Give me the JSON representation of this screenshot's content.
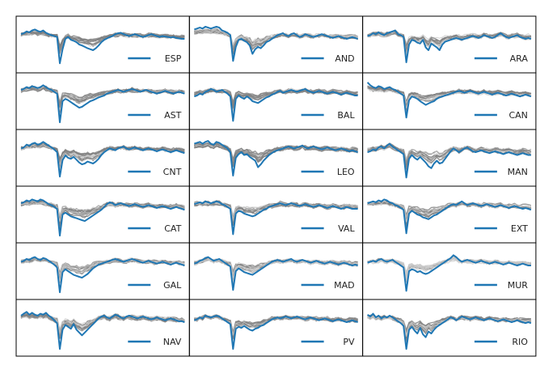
{
  "chart_data": {
    "type": "line",
    "description_grid": {
      "rows": 6,
      "cols": 3
    },
    "grid": false,
    "axis_ticks": false,
    "legend_placement": "lower-right",
    "colors": {
      "highlight": "#1f77b4",
      "background_series": "#808080",
      "frame": "#000000"
    },
    "x": [
      0,
      1,
      2,
      3,
      4,
      5,
      6,
      7,
      8,
      9,
      10,
      11,
      12,
      13,
      14,
      15,
      16,
      17,
      18,
      19,
      20,
      21,
      22,
      23,
      24,
      25,
      26,
      27,
      28,
      29,
      30,
      31,
      32,
      33,
      34,
      35,
      36,
      37,
      38,
      39,
      40,
      41,
      42,
      43,
      44,
      45,
      46,
      47,
      48,
      49,
      50,
      51,
      52,
      53,
      54,
      55,
      56,
      57,
      58,
      59
    ],
    "panels": [
      {
        "label": "ESP",
        "values": [
          0.72,
          0.74,
          0.78,
          0.76,
          0.8,
          0.82,
          0.79,
          0.77,
          0.8,
          0.75,
          0.72,
          0.7,
          0.68,
          0.66,
          0.1,
          0.4,
          0.62,
          0.66,
          0.6,
          0.58,
          0.55,
          0.5,
          0.48,
          0.45,
          0.42,
          0.4,
          0.38,
          0.42,
          0.48,
          0.55,
          0.6,
          0.63,
          0.66,
          0.68,
          0.72,
          0.74,
          0.75,
          0.72,
          0.7,
          0.68,
          0.7,
          0.72,
          0.7,
          0.68,
          0.66,
          0.68,
          0.7,
          0.72,
          0.7,
          0.68,
          0.66,
          0.68,
          0.67,
          0.66,
          0.65,
          0.66,
          0.64,
          0.63,
          0.62,
          0.62
        ]
      },
      {
        "label": "AND",
        "values": [
          0.82,
          0.84,
          0.86,
          0.84,
          0.88,
          0.86,
          0.84,
          0.86,
          0.88,
          0.86,
          0.8,
          0.78,
          0.75,
          0.7,
          0.15,
          0.45,
          0.6,
          0.62,
          0.58,
          0.55,
          0.48,
          0.3,
          0.4,
          0.45,
          0.42,
          0.48,
          0.55,
          0.58,
          0.62,
          0.66,
          0.7,
          0.72,
          0.74,
          0.7,
          0.68,
          0.72,
          0.74,
          0.7,
          0.66,
          0.68,
          0.72,
          0.7,
          0.68,
          0.66,
          0.68,
          0.7,
          0.72,
          0.7,
          0.68,
          0.66,
          0.64,
          0.66,
          0.68,
          0.66,
          0.64,
          0.62,
          0.64,
          0.66,
          0.64,
          0.62
        ]
      },
      {
        "label": "ARA",
        "values": [
          0.68,
          0.7,
          0.74,
          0.72,
          0.76,
          0.72,
          0.7,
          0.74,
          0.76,
          0.78,
          0.8,
          0.72,
          0.7,
          0.66,
          0.12,
          0.5,
          0.6,
          0.58,
          0.54,
          0.52,
          0.6,
          0.44,
          0.38,
          0.52,
          0.48,
          0.44,
          0.38,
          0.5,
          0.56,
          0.58,
          0.6,
          0.62,
          0.64,
          0.62,
          0.6,
          0.62,
          0.64,
          0.66,
          0.68,
          0.66,
          0.64,
          0.66,
          0.7,
          0.68,
          0.66,
          0.64,
          0.66,
          0.7,
          0.74,
          0.7,
          0.66,
          0.64,
          0.66,
          0.68,
          0.7,
          0.66,
          0.64,
          0.62,
          0.64,
          0.62
        ]
      },
      {
        "label": "AST",
        "values": [
          0.74,
          0.76,
          0.8,
          0.78,
          0.82,
          0.8,
          0.78,
          0.8,
          0.84,
          0.8,
          0.76,
          0.74,
          0.7,
          0.66,
          0.05,
          0.5,
          0.55,
          0.52,
          0.48,
          0.44,
          0.4,
          0.36,
          0.38,
          0.42,
          0.46,
          0.5,
          0.52,
          0.55,
          0.58,
          0.6,
          0.62,
          0.66,
          0.68,
          0.7,
          0.72,
          0.74,
          0.72,
          0.7,
          0.72,
          0.74,
          0.76,
          0.74,
          0.72,
          0.7,
          0.72,
          0.74,
          0.72,
          0.7,
          0.68,
          0.66,
          0.68,
          0.7,
          0.72,
          0.7,
          0.68,
          0.66,
          0.68,
          0.7,
          0.68,
          0.66
        ]
      },
      {
        "label": "BAL",
        "values": [
          0.6,
          0.62,
          0.66,
          0.64,
          0.7,
          0.72,
          0.76,
          0.74,
          0.7,
          0.72,
          0.74,
          0.7,
          0.66,
          0.6,
          0.08,
          0.55,
          0.62,
          0.58,
          0.55,
          0.6,
          0.56,
          0.5,
          0.48,
          0.46,
          0.5,
          0.54,
          0.58,
          0.6,
          0.64,
          0.66,
          0.7,
          0.72,
          0.68,
          0.7,
          0.72,
          0.74,
          0.72,
          0.7,
          0.72,
          0.74,
          0.76,
          0.72,
          0.7,
          0.68,
          0.7,
          0.72,
          0.7,
          0.68,
          0.66,
          0.68,
          0.7,
          0.68,
          0.66,
          0.64,
          0.66,
          0.68,
          0.66,
          0.64,
          0.62,
          0.62
        ]
      },
      {
        "label": "CAN",
        "values": [
          0.9,
          0.84,
          0.8,
          0.78,
          0.82,
          0.8,
          0.76,
          0.78,
          0.8,
          0.76,
          0.74,
          0.7,
          0.66,
          0.62,
          0.15,
          0.52,
          0.6,
          0.58,
          0.55,
          0.5,
          0.46,
          0.42,
          0.45,
          0.48,
          0.5,
          0.55,
          0.58,
          0.6,
          0.62,
          0.64,
          0.66,
          0.68,
          0.7,
          0.72,
          0.7,
          0.68,
          0.7,
          0.72,
          0.7,
          0.68,
          0.66,
          0.68,
          0.7,
          0.68,
          0.66,
          0.64,
          0.66,
          0.68,
          0.66,
          0.64,
          0.62,
          0.64,
          0.66,
          0.64,
          0.62,
          0.6,
          0.62,
          0.64,
          0.62,
          0.6
        ]
      },
      {
        "label": "CNT",
        "values": [
          0.7,
          0.72,
          0.78,
          0.76,
          0.8,
          0.82,
          0.78,
          0.8,
          0.84,
          0.8,
          0.76,
          0.72,
          0.68,
          0.62,
          0.1,
          0.45,
          0.55,
          0.5,
          0.48,
          0.52,
          0.46,
          0.4,
          0.36,
          0.38,
          0.42,
          0.4,
          0.38,
          0.42,
          0.48,
          0.56,
          0.62,
          0.66,
          0.7,
          0.68,
          0.66,
          0.7,
          0.72,
          0.74,
          0.7,
          0.68,
          0.7,
          0.72,
          0.7,
          0.68,
          0.66,
          0.68,
          0.7,
          0.68,
          0.66,
          0.64,
          0.66,
          0.68,
          0.66,
          0.64,
          0.62,
          0.64,
          0.66,
          0.64,
          0.62,
          0.6
        ]
      },
      {
        "label": "LEO",
        "values": [
          0.8,
          0.82,
          0.84,
          0.8,
          0.84,
          0.86,
          0.8,
          0.78,
          0.84,
          0.82,
          0.78,
          0.74,
          0.7,
          0.62,
          0.12,
          0.5,
          0.58,
          0.62,
          0.56,
          0.58,
          0.52,
          0.48,
          0.44,
          0.3,
          0.36,
          0.44,
          0.5,
          0.56,
          0.6,
          0.64,
          0.66,
          0.68,
          0.7,
          0.72,
          0.74,
          0.72,
          0.7,
          0.72,
          0.74,
          0.76,
          0.72,
          0.7,
          0.72,
          0.74,
          0.72,
          0.7,
          0.68,
          0.7,
          0.72,
          0.7,
          0.68,
          0.66,
          0.68,
          0.7,
          0.68,
          0.66,
          0.64,
          0.66,
          0.64,
          0.62
        ]
      },
      {
        "label": "MAN",
        "values": [
          0.62,
          0.64,
          0.68,
          0.66,
          0.72,
          0.74,
          0.7,
          0.76,
          0.8,
          0.74,
          0.7,
          0.66,
          0.62,
          0.58,
          0.08,
          0.48,
          0.56,
          0.5,
          0.46,
          0.52,
          0.46,
          0.4,
          0.32,
          0.28,
          0.38,
          0.44,
          0.38,
          0.4,
          0.48,
          0.56,
          0.64,
          0.7,
          0.66,
          0.62,
          0.66,
          0.7,
          0.72,
          0.68,
          0.64,
          0.62,
          0.64,
          0.66,
          0.64,
          0.62,
          0.6,
          0.62,
          0.64,
          0.62,
          0.6,
          0.58,
          0.6,
          0.62,
          0.6,
          0.58,
          0.56,
          0.58,
          0.6,
          0.58,
          0.56,
          0.56
        ]
      },
      {
        "label": "CAT",
        "values": [
          0.74,
          0.76,
          0.8,
          0.78,
          0.82,
          0.8,
          0.78,
          0.82,
          0.8,
          0.76,
          0.72,
          0.7,
          0.66,
          0.62,
          0.05,
          0.5,
          0.54,
          0.5,
          0.46,
          0.44,
          0.42,
          0.4,
          0.38,
          0.36,
          0.4,
          0.44,
          0.48,
          0.52,
          0.56,
          0.6,
          0.66,
          0.72,
          0.76,
          0.74,
          0.7,
          0.72,
          0.74,
          0.72,
          0.7,
          0.68,
          0.7,
          0.72,
          0.7,
          0.68,
          0.66,
          0.68,
          0.7,
          0.68,
          0.66,
          0.64,
          0.66,
          0.68,
          0.66,
          0.64,
          0.62,
          0.64,
          0.66,
          0.64,
          0.62,
          0.6
        ]
      },
      {
        "label": "VAL",
        "values": [
          0.72,
          0.74,
          0.76,
          0.74,
          0.78,
          0.76,
          0.74,
          0.76,
          0.78,
          0.76,
          0.72,
          0.7,
          0.66,
          0.62,
          0.08,
          0.52,
          0.58,
          0.56,
          0.52,
          0.5,
          0.48,
          0.46,
          0.48,
          0.52,
          0.56,
          0.6,
          0.62,
          0.66,
          0.68,
          0.7,
          0.72,
          0.74,
          0.72,
          0.7,
          0.72,
          0.74,
          0.72,
          0.7,
          0.68,
          0.7,
          0.72,
          0.7,
          0.68,
          0.66,
          0.68,
          0.7,
          0.68,
          0.66,
          0.64,
          0.66,
          0.68,
          0.66,
          0.64,
          0.62,
          0.64,
          0.66,
          0.64,
          0.62,
          0.62,
          0.62
        ]
      },
      {
        "label": "EXT",
        "values": [
          0.74,
          0.76,
          0.78,
          0.76,
          0.8,
          0.78,
          0.82,
          0.8,
          0.76,
          0.74,
          0.7,
          0.68,
          0.64,
          0.6,
          0.1,
          0.52,
          0.58,
          0.54,
          0.5,
          0.48,
          0.44,
          0.42,
          0.4,
          0.44,
          0.48,
          0.5,
          0.54,
          0.58,
          0.62,
          0.66,
          0.7,
          0.72,
          0.7,
          0.74,
          0.78,
          0.74,
          0.7,
          0.72,
          0.74,
          0.72,
          0.7,
          0.68,
          0.7,
          0.72,
          0.7,
          0.68,
          0.66,
          0.68,
          0.7,
          0.68,
          0.66,
          0.64,
          0.66,
          0.68,
          0.66,
          0.64,
          0.62,
          0.64,
          0.62,
          0.6
        ]
      },
      {
        "label": "GAL",
        "values": [
          0.7,
          0.72,
          0.76,
          0.74,
          0.78,
          0.8,
          0.76,
          0.74,
          0.78,
          0.76,
          0.72,
          0.68,
          0.64,
          0.58,
          0.05,
          0.48,
          0.54,
          0.5,
          0.46,
          0.42,
          0.4,
          0.38,
          0.36,
          0.4,
          0.44,
          0.5,
          0.56,
          0.6,
          0.64,
          0.66,
          0.68,
          0.7,
          0.72,
          0.74,
          0.76,
          0.74,
          0.72,
          0.7,
          0.72,
          0.74,
          0.76,
          0.74,
          0.72,
          0.7,
          0.68,
          0.7,
          0.72,
          0.7,
          0.68,
          0.66,
          0.68,
          0.7,
          0.68,
          0.66,
          0.64,
          0.66,
          0.68,
          0.66,
          0.64,
          0.62
        ]
      },
      {
        "label": "MAD",
        "values": [
          0.66,
          0.68,
          0.72,
          0.74,
          0.78,
          0.8,
          0.76,
          0.72,
          0.74,
          0.76,
          0.72,
          0.68,
          0.64,
          0.6,
          0.1,
          0.5,
          0.56,
          0.52,
          0.48,
          0.46,
          0.44,
          0.42,
          0.46,
          0.5,
          0.54,
          0.58,
          0.62,
          0.66,
          0.7,
          0.72,
          0.74,
          0.72,
          0.7,
          0.72,
          0.74,
          0.76,
          0.72,
          0.7,
          0.72,
          0.74,
          0.72,
          0.7,
          0.68,
          0.7,
          0.72,
          0.7,
          0.68,
          0.66,
          0.68,
          0.7,
          0.68,
          0.66,
          0.64,
          0.66,
          0.68,
          0.66,
          0.64,
          0.62,
          0.64,
          0.62
        ]
      },
      {
        "label": "MUR",
        "values": [
          0.68,
          0.7,
          0.72,
          0.7,
          0.74,
          0.76,
          0.72,
          0.7,
          0.72,
          0.74,
          0.7,
          0.66,
          0.62,
          0.58,
          0.08,
          0.5,
          0.54,
          0.52,
          0.48,
          0.5,
          0.46,
          0.44,
          0.46,
          0.5,
          0.54,
          0.58,
          0.62,
          0.66,
          0.7,
          0.74,
          0.78,
          0.84,
          0.8,
          0.74,
          0.7,
          0.72,
          0.74,
          0.72,
          0.7,
          0.68,
          0.7,
          0.72,
          0.7,
          0.68,
          0.66,
          0.68,
          0.7,
          0.68,
          0.66,
          0.64,
          0.66,
          0.68,
          0.66,
          0.64,
          0.62,
          0.64,
          0.66,
          0.64,
          0.62,
          0.62
        ]
      },
      {
        "label": "NAV",
        "values": [
          0.76,
          0.8,
          0.84,
          0.78,
          0.82,
          0.78,
          0.76,
          0.8,
          0.78,
          0.82,
          0.76,
          0.72,
          0.66,
          0.6,
          0.05,
          0.46,
          0.56,
          0.52,
          0.48,
          0.58,
          0.46,
          0.4,
          0.34,
          0.4,
          0.46,
          0.52,
          0.58,
          0.64,
          0.7,
          0.74,
          0.76,
          0.72,
          0.7,
          0.74,
          0.78,
          0.76,
          0.72,
          0.7,
          0.74,
          0.76,
          0.74,
          0.72,
          0.7,
          0.72,
          0.74,
          0.72,
          0.7,
          0.68,
          0.7,
          0.72,
          0.7,
          0.68,
          0.66,
          0.68,
          0.7,
          0.68,
          0.66,
          0.64,
          0.64,
          0.62
        ]
      },
      {
        "label": "PV",
        "values": [
          0.66,
          0.68,
          0.72,
          0.7,
          0.76,
          0.74,
          0.72,
          0.74,
          0.76,
          0.74,
          0.7,
          0.66,
          0.62,
          0.58,
          0.05,
          0.48,
          0.52,
          0.5,
          0.54,
          0.5,
          0.46,
          0.44,
          0.48,
          0.5,
          0.54,
          0.56,
          0.6,
          0.64,
          0.68,
          0.7,
          0.72,
          0.7,
          0.72,
          0.74,
          0.72,
          0.7,
          0.72,
          0.74,
          0.72,
          0.7,
          0.68,
          0.7,
          0.72,
          0.7,
          0.68,
          0.66,
          0.68,
          0.7,
          0.68,
          0.66,
          0.64,
          0.66,
          0.68,
          0.66,
          0.64,
          0.62,
          0.64,
          0.66,
          0.64,
          0.62
        ]
      },
      {
        "label": "RIO",
        "values": [
          0.78,
          0.74,
          0.8,
          0.72,
          0.76,
          0.7,
          0.74,
          0.72,
          0.76,
          0.72,
          0.68,
          0.64,
          0.6,
          0.54,
          0.05,
          0.46,
          0.52,
          0.44,
          0.38,
          0.5,
          0.36,
          0.3,
          0.42,
          0.38,
          0.46,
          0.52,
          0.56,
          0.6,
          0.64,
          0.68,
          0.72,
          0.7,
          0.66,
          0.7,
          0.74,
          0.72,
          0.7,
          0.68,
          0.7,
          0.72,
          0.7,
          0.68,
          0.66,
          0.68,
          0.7,
          0.68,
          0.66,
          0.64,
          0.66,
          0.68,
          0.66,
          0.64,
          0.62,
          0.64,
          0.66,
          0.64,
          0.62,
          0.6,
          0.62,
          0.6
        ]
      }
    ]
  }
}
